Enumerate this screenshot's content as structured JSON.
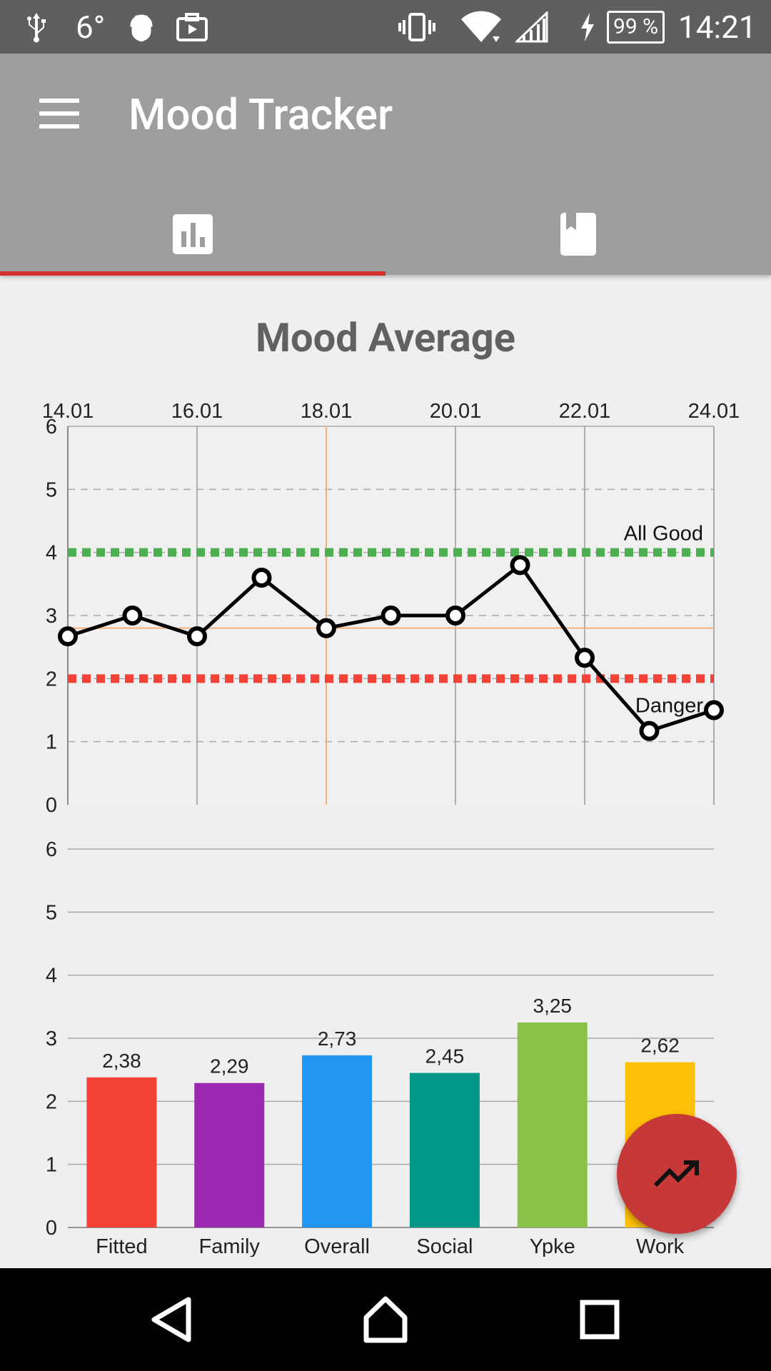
{
  "status_bar": {
    "temperature": "6°",
    "battery": "99 %",
    "time": "14:21",
    "icons": [
      "usb-icon",
      "android-debug-icon",
      "screencast-icon",
      "vibrate-icon",
      "wifi-icon",
      "signal-icon",
      "charging-icon"
    ]
  },
  "app_bar": {
    "title": "Mood Tracker",
    "menu_icon": "menu-icon",
    "tabs": [
      {
        "icon": "bar-chart-icon",
        "selected": true
      },
      {
        "icon": "bookmark-book-icon",
        "selected": false
      }
    ]
  },
  "colors": {
    "primary": "#9e9e9e",
    "accent": "#c73838",
    "good": "#4caf50",
    "danger": "#f44336"
  },
  "main": {
    "title": "Mood Average"
  },
  "chart_data": [
    {
      "type": "line",
      "title": "Mood Average",
      "x_tick_labels": [
        "14.01",
        "16.01",
        "18.01",
        "20.01",
        "22.01",
        "24.01"
      ],
      "x": [
        14,
        15,
        16,
        17,
        18,
        19,
        20,
        21,
        22,
        23,
        24
      ],
      "values": [
        2.67,
        3.0,
        2.67,
        3.6,
        2.8,
        3.0,
        3.0,
        3.8,
        2.33,
        1.17,
        1.5
      ],
      "ylim": [
        0,
        6
      ],
      "yticks": [
        0,
        1,
        2,
        3,
        4,
        5,
        6
      ],
      "limit_lines": [
        {
          "label": "All Good",
          "value": 4,
          "color": "#4caf50"
        },
        {
          "label": "Danger",
          "value": 2,
          "color": "#f44336"
        }
      ],
      "highlight": {
        "x": 18,
        "y": 2.8,
        "color": "#f0b27a"
      }
    },
    {
      "type": "bar",
      "categories": [
        "Fitted",
        "Family",
        "Overall",
        "Social",
        "Ypke",
        "Work"
      ],
      "values": [
        2.38,
        2.29,
        2.73,
        2.45,
        3.25,
        2.62
      ],
      "value_labels": [
        "2,38",
        "2,29",
        "2,73",
        "2,45",
        "3,25",
        "2,62"
      ],
      "colors": [
        "#f44336",
        "#9c27b0",
        "#2196f3",
        "#009688",
        "#8bc34a",
        "#ffc107"
      ],
      "ylim": [
        0,
        6
      ],
      "yticks": [
        0,
        1,
        2,
        3,
        4,
        5,
        6
      ]
    }
  ],
  "fab": {
    "icon": "trending-icon"
  },
  "nav_bar": {
    "icons": [
      "back-icon",
      "home-icon",
      "recents-icon"
    ]
  }
}
